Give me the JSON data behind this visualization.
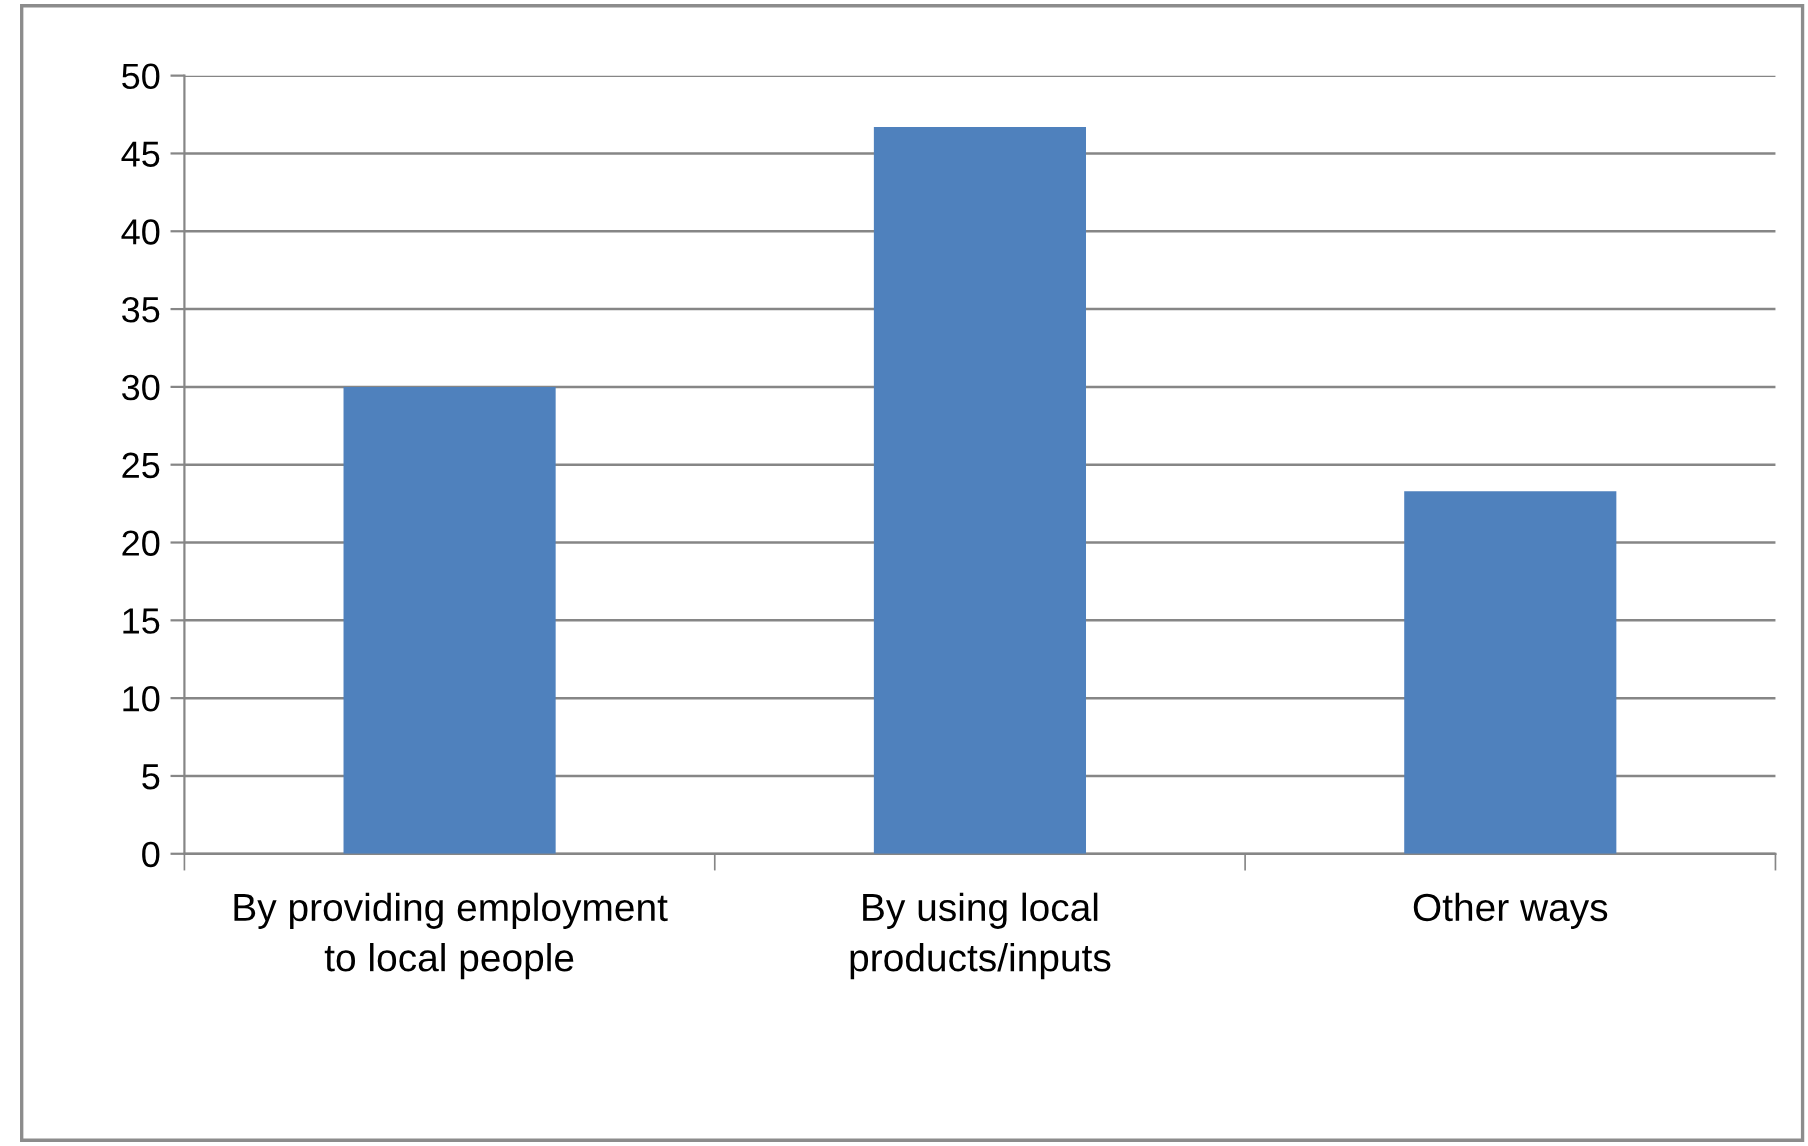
{
  "chart_data": {
    "type": "bar",
    "categories": [
      "By providing employment to local people",
      "By using local products/inputs",
      "Other ways"
    ],
    "values": [
      30,
      46.7,
      23.3
    ],
    "color": "#4f81bd",
    "ylim": [
      0,
      50
    ],
    "yticks": [
      0,
      5,
      10,
      15,
      20,
      25,
      30,
      35,
      40,
      45,
      50
    ],
    "grid": "y"
  }
}
